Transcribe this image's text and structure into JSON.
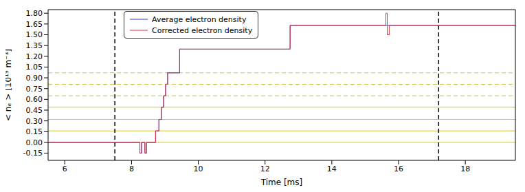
{
  "chart_data": {
    "type": "line",
    "x_label": "Time [ms]",
    "y_label": "< nₑ > [10¹⁹ m⁻³]",
    "xlim": [
      5.5,
      19.5
    ],
    "ylim": [
      -0.25,
      1.85
    ],
    "xticks": [
      6,
      8,
      10,
      12,
      14,
      16,
      18
    ],
    "yticks": [
      -0.15,
      {
        "value": 0,
        "label": "0.00"
      },
      0.15,
      {
        "value": 0.3,
        "label": "0.30"
      },
      0.45,
      {
        "value": 0.6,
        "label": "0.60"
      },
      0.75,
      {
        "value": 0.9,
        "label": "0.90"
      },
      1.05,
      {
        "value": 1.2,
        "label": "1.20"
      },
      1.35,
      {
        "value": 1.5,
        "label": "1.50"
      },
      1.65,
      {
        "value": 1.8,
        "label": "1.80"
      }
    ],
    "grid": false,
    "legend": "upper left",
    "x": [
      5.5,
      8.25,
      8.3,
      8.4,
      8.45,
      8.72,
      8.82,
      8.9,
      8.96,
      9.02,
      9.08,
      9.44,
      12.75,
      15.62,
      15.66,
      15.72,
      19.5
    ],
    "series": [
      {
        "name": "Average electron density",
        "color": "#3333cc",
        "values": [
          0,
          -0.15,
          0,
          -0.15,
          0,
          0.16,
          0.32,
          0.49,
          0.65,
          0.81,
          0.97,
          1.3,
          1.63,
          1.63,
          1.63,
          1.63,
          1.63
        ]
      },
      {
        "name": "Corrected electron density",
        "color": "#e0303a",
        "values": [
          0,
          -0.15,
          0,
          -0.15,
          0,
          0.16,
          0.32,
          0.49,
          0.65,
          0.81,
          0.97,
          1.3,
          1.63,
          1.8,
          1.5,
          1.63,
          1.63
        ]
      }
    ],
    "vertical_lines": [
      {
        "x": 7.5,
        "line_style": "dashed"
      },
      {
        "x": 17.2,
        "line_style": "dashed"
      }
    ],
    "horizontal_lines": [
      {
        "y": 0,
        "line_style": "solid"
      },
      {
        "y": 0.16,
        "line_style": "solid"
      },
      {
        "y": 0.32,
        "line_style": "solid"
      },
      {
        "y": 0.49,
        "line_style": "solid"
      },
      {
        "y": 0.65,
        "line_style": "dashed"
      },
      {
        "y": 0.81,
        "line_style": "dashed"
      },
      {
        "y": 0.97,
        "line_style": "dashed"
      }
    ]
  }
}
